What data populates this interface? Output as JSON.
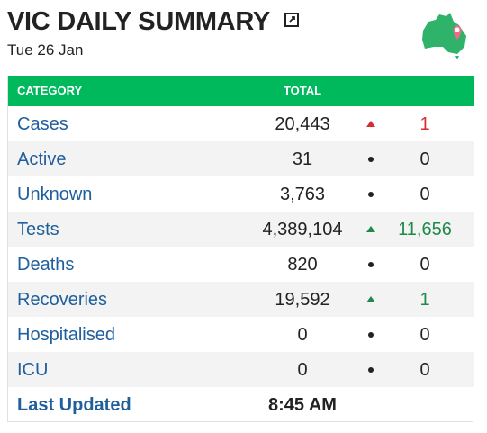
{
  "header": {
    "title": "VIC DAILY SUMMARY",
    "date": "Tue 26 Jan"
  },
  "table": {
    "columns": [
      "CATEGORY",
      "TOTAL"
    ],
    "rows": [
      {
        "category": "Cases",
        "total": "20,443",
        "change": "1",
        "trend": "up",
        "color": "#d32f2f"
      },
      {
        "category": "Active",
        "total": "31",
        "change": "0",
        "trend": "none",
        "color": "#222222"
      },
      {
        "category": "Unknown",
        "total": "3,763",
        "change": "0",
        "trend": "none",
        "color": "#222222"
      },
      {
        "category": "Tests",
        "total": "4,389,104",
        "change": "11,656",
        "trend": "up",
        "color": "#1e8a4a"
      },
      {
        "category": "Deaths",
        "total": "820",
        "change": "0",
        "trend": "none",
        "color": "#222222"
      },
      {
        "category": "Recoveries",
        "total": "19,592",
        "change": "1",
        "trend": "up",
        "color": "#1e8a4a"
      },
      {
        "category": "Hospitalised",
        "total": "0",
        "change": "0",
        "trend": "none",
        "color": "#222222"
      },
      {
        "category": "ICU",
        "total": "0",
        "change": "0",
        "trend": "none",
        "color": "#222222"
      }
    ],
    "footer": {
      "label": "Last Updated",
      "value": "8:45 AM"
    }
  }
}
